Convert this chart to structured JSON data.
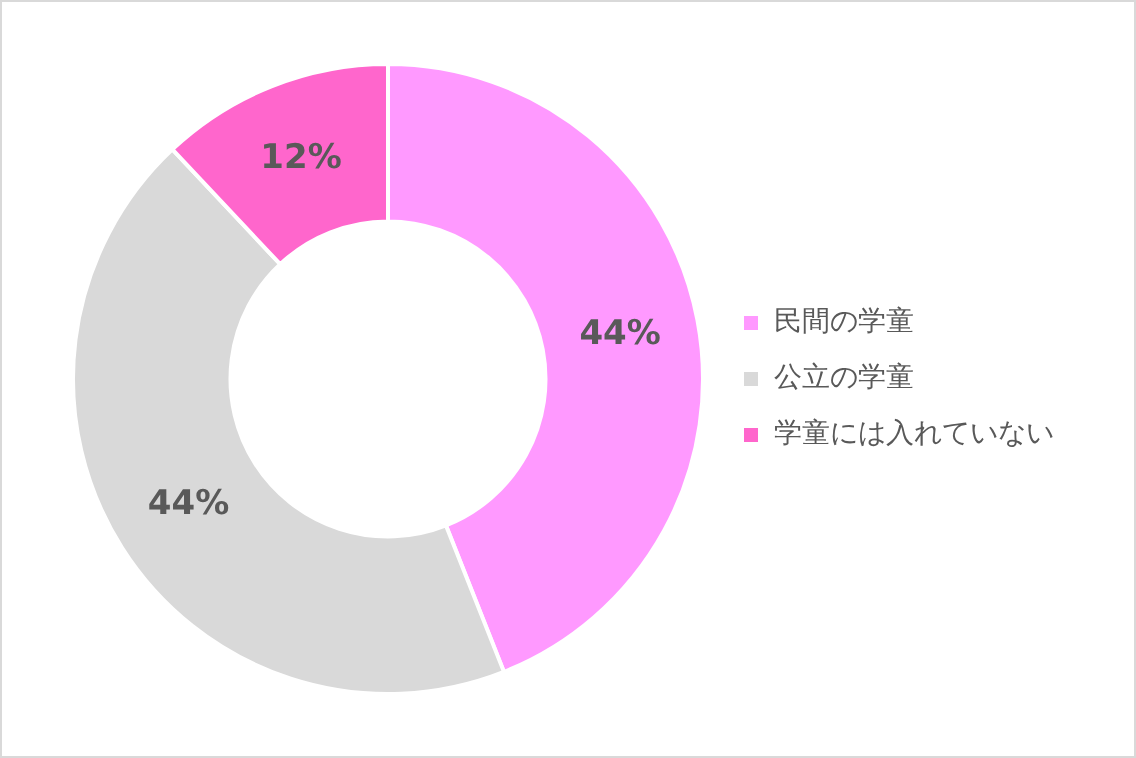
{
  "chart_data": {
    "type": "donut",
    "categories": [
      "民間の学童",
      "公立の学童",
      "学童には入れていない"
    ],
    "values": [
      44,
      44,
      12
    ],
    "colors": [
      "#ff99ff",
      "#d9d9d9",
      "#ff66cc"
    ],
    "value_labels": [
      "44%",
      "44%",
      "12%"
    ],
    "legend": "right"
  }
}
